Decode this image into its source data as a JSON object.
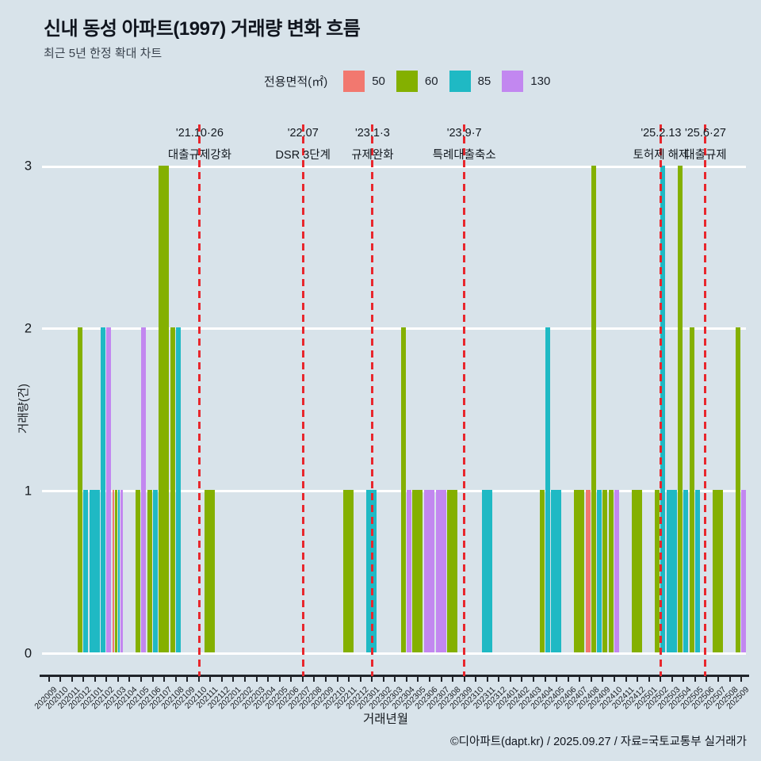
{
  "header": {
    "title": "신내 동성 아파트(1997) 거래량 변화 흐름",
    "subtitle": "최근 5년 한정 확대 차트"
  },
  "legend": {
    "label": "전용면적(㎡)",
    "items": [
      {
        "label": "50",
        "color": "#F2786F"
      },
      {
        "label": "60",
        "color": "#84B000"
      },
      {
        "label": "85",
        "color": "#1FB9C4"
      },
      {
        "label": "130",
        "color": "#C287F0"
      }
    ]
  },
  "chart_data": {
    "type": "bar",
    "title": "신내 동성 아파트(1997) 거래량 변화 흐름",
    "xlabel": "거래년월",
    "ylabel": "거래량(건)",
    "ylim": [
      0,
      3
    ],
    "yticks": [
      0,
      1,
      2,
      3
    ],
    "grid": true,
    "legend_position": "top",
    "area_colors": {
      "50": "#F2786F",
      "60": "#84B000",
      "85": "#1FB9C4",
      "130": "#C287F0"
    },
    "months": [
      {
        "ym": "202009",
        "bars": []
      },
      {
        "ym": "202010",
        "bars": []
      },
      {
        "ym": "202011",
        "bars": []
      },
      {
        "ym": "202012",
        "bars": [
          {
            "area": "60",
            "count": 2
          },
          {
            "area": "85",
            "count": 1
          }
        ]
      },
      {
        "ym": "202101",
        "bars": [
          {
            "area": "85",
            "count": 1
          }
        ]
      },
      {
        "ym": "202102",
        "bars": [
          {
            "area": "85",
            "count": 2
          },
          {
            "area": "130",
            "count": 2
          }
        ]
      },
      {
        "ym": "202103",
        "bars": [
          {
            "area": "50",
            "count": 1
          },
          {
            "area": "60",
            "count": 1
          },
          {
            "area": "85",
            "count": 1
          },
          {
            "area": "130",
            "count": 1
          }
        ]
      },
      {
        "ym": "202104",
        "bars": []
      },
      {
        "ym": "202105",
        "bars": [
          {
            "area": "60",
            "count": 1
          },
          {
            "area": "130",
            "count": 2
          }
        ]
      },
      {
        "ym": "202106",
        "bars": [
          {
            "area": "60",
            "count": 1
          },
          {
            "area": "85",
            "count": 1
          }
        ]
      },
      {
        "ym": "202107",
        "bars": [
          {
            "area": "60",
            "count": 3
          }
        ]
      },
      {
        "ym": "202108",
        "bars": [
          {
            "area": "60",
            "count": 2
          },
          {
            "area": "85",
            "count": 2
          }
        ]
      },
      {
        "ym": "202109",
        "bars": []
      },
      {
        "ym": "202110",
        "bars": []
      },
      {
        "ym": "202111",
        "bars": [
          {
            "area": "60",
            "count": 1
          }
        ]
      },
      {
        "ym": "202112",
        "bars": []
      },
      {
        "ym": "202201",
        "bars": []
      },
      {
        "ym": "202202",
        "bars": []
      },
      {
        "ym": "202203",
        "bars": []
      },
      {
        "ym": "202204",
        "bars": []
      },
      {
        "ym": "202205",
        "bars": []
      },
      {
        "ym": "202206",
        "bars": []
      },
      {
        "ym": "202207",
        "bars": []
      },
      {
        "ym": "202208",
        "bars": []
      },
      {
        "ym": "202209",
        "bars": []
      },
      {
        "ym": "202210",
        "bars": []
      },
      {
        "ym": "202211",
        "bars": [
          {
            "area": "60",
            "count": 1
          }
        ]
      },
      {
        "ym": "202212",
        "bars": []
      },
      {
        "ym": "202301",
        "bars": [
          {
            "area": "85",
            "count": 1
          }
        ]
      },
      {
        "ym": "202302",
        "bars": []
      },
      {
        "ym": "202303",
        "bars": []
      },
      {
        "ym": "202304",
        "bars": [
          {
            "area": "60",
            "count": 2
          },
          {
            "area": "130",
            "count": 1
          }
        ]
      },
      {
        "ym": "202305",
        "bars": [
          {
            "area": "60",
            "count": 1
          }
        ]
      },
      {
        "ym": "202306",
        "bars": [
          {
            "area": "130",
            "count": 1
          }
        ]
      },
      {
        "ym": "202307",
        "bars": [
          {
            "area": "130",
            "count": 1
          }
        ]
      },
      {
        "ym": "202308",
        "bars": [
          {
            "area": "60",
            "count": 1
          }
        ]
      },
      {
        "ym": "202309",
        "bars": []
      },
      {
        "ym": "202310",
        "bars": []
      },
      {
        "ym": "202311",
        "bars": [
          {
            "area": "85",
            "count": 1
          }
        ]
      },
      {
        "ym": "202312",
        "bars": []
      },
      {
        "ym": "202401",
        "bars": []
      },
      {
        "ym": "202402",
        "bars": []
      },
      {
        "ym": "202403",
        "bars": []
      },
      {
        "ym": "202404",
        "bars": [
          {
            "area": "60",
            "count": 1
          },
          {
            "area": "85",
            "count": 2
          }
        ]
      },
      {
        "ym": "202405",
        "bars": [
          {
            "area": "85",
            "count": 1
          }
        ]
      },
      {
        "ym": "202406",
        "bars": []
      },
      {
        "ym": "202407",
        "bars": [
          {
            "area": "60",
            "count": 1
          }
        ]
      },
      {
        "ym": "202408",
        "bars": [
          {
            "area": "50",
            "count": 1
          },
          {
            "area": "60",
            "count": 3
          }
        ]
      },
      {
        "ym": "202409",
        "bars": [
          {
            "area": "85",
            "count": 1
          },
          {
            "area": "60",
            "count": 1
          }
        ]
      },
      {
        "ym": "202410",
        "bars": [
          {
            "area": "60",
            "count": 1
          },
          {
            "area": "130",
            "count": 1
          }
        ]
      },
      {
        "ym": "202411",
        "bars": []
      },
      {
        "ym": "202412",
        "bars": [
          {
            "area": "60",
            "count": 1
          }
        ]
      },
      {
        "ym": "202501",
        "bars": []
      },
      {
        "ym": "202502",
        "bars": [
          {
            "area": "60",
            "count": 1
          },
          {
            "area": "85",
            "count": 3
          }
        ]
      },
      {
        "ym": "202503",
        "bars": [
          {
            "area": "85",
            "count": 1
          }
        ]
      },
      {
        "ym": "202504",
        "bars": [
          {
            "area": "60",
            "count": 3
          },
          {
            "area": "85",
            "count": 1
          }
        ]
      },
      {
        "ym": "202505",
        "bars": [
          {
            "area": "60",
            "count": 2
          },
          {
            "area": "85",
            "count": 1
          }
        ]
      },
      {
        "ym": "202506",
        "bars": []
      },
      {
        "ym": "202507",
        "bars": [
          {
            "area": "60",
            "count": 1
          }
        ]
      },
      {
        "ym": "202508",
        "bars": []
      },
      {
        "ym": "202509",
        "bars": [
          {
            "area": "60",
            "count": 2
          },
          {
            "area": "130",
            "count": 1
          }
        ]
      }
    ],
    "annotations": [
      {
        "date": "'21.10·26",
        "label": "대출규제강화",
        "x_index": 13.08
      },
      {
        "date": "'22.07",
        "label": "DSR 3단계",
        "x_index": 22.03
      },
      {
        "date": "'23.1·3",
        "label": "규제완화",
        "x_index": 28.05
      },
      {
        "date": "'23.9·7",
        "label": "특례대출축소",
        "x_index": 36.0
      },
      {
        "date": "'25.2.13",
        "label": "토허제 해제",
        "x_index": 53.05
      },
      {
        "date": "'25.6·27",
        "label": "대출규제",
        "x_index": 56.9
      }
    ],
    "event_line_color": "#E8272D"
  },
  "footer": {
    "text": "©디아파트(dapt.kr) / 2025.09.27 / 자료=국토교통부 실거래가"
  }
}
